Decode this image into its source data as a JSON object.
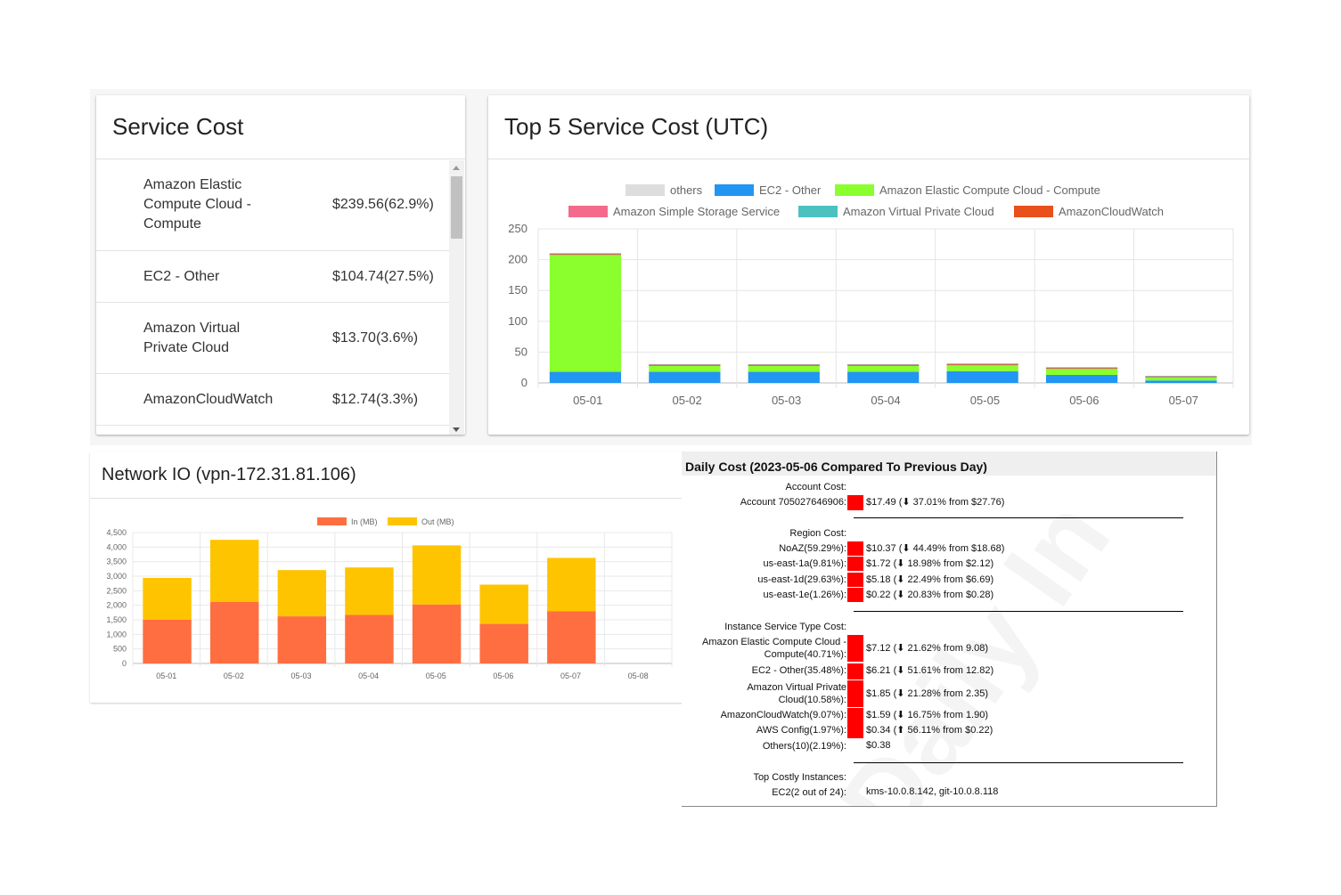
{
  "service_cost": {
    "title": "Service Cost",
    "items": [
      {
        "name": "Amazon Elastic Compute Cloud - Compute",
        "value": "$239.56(62.9%)"
      },
      {
        "name": "EC2 - Other",
        "value": "$104.74(27.5%)"
      },
      {
        "name": "Amazon Virtual Private Cloud",
        "value": "$13.70(3.6%)"
      },
      {
        "name": "AmazonCloudWatch",
        "value": "$12.74(3.3%)"
      }
    ]
  },
  "top5": {
    "title": "Top 5 Service Cost (UTC)",
    "chart_data": {
      "type": "bar",
      "stacked": true,
      "categories": [
        "05-01",
        "05-02",
        "05-03",
        "05-04",
        "05-05",
        "05-06",
        "05-07"
      ],
      "ylim": [
        0,
        250
      ],
      "yticks": [
        0,
        50,
        100,
        150,
        200,
        250
      ],
      "grid": true,
      "legend": "top",
      "series": [
        {
          "name": "others",
          "color": "#dddddd",
          "values": [
            1,
            1,
            1,
            1,
            1,
            1,
            0.5
          ]
        },
        {
          "name": "EC2 - Other",
          "color": "#2196f3",
          "values": [
            18,
            18,
            18,
            18,
            19,
            13,
            4
          ]
        },
        {
          "name": "Amazon Elastic Compute Cloud - Compute",
          "color": "#8aff2d",
          "values": [
            190,
            10,
            10,
            10,
            10,
            10,
            6
          ]
        },
        {
          "name": "Amazon Simple Storage Service",
          "color": "#f46a8a",
          "values": [
            0,
            0,
            0,
            0,
            0,
            0,
            0
          ]
        },
        {
          "name": "Amazon Virtual Private Cloud",
          "color": "#4dc0c0",
          "values": [
            1,
            1,
            1,
            1,
            1,
            1,
            0.5
          ]
        },
        {
          "name": "AmazonCloudWatch",
          "color": "#e8501c",
          "values": [
            0.5,
            0.5,
            0.5,
            0.5,
            0.5,
            0.5,
            0.5
          ]
        }
      ],
      "cap_color": "#b39aa6"
    }
  },
  "network": {
    "title": "Network IO (vpn-172.31.81.106)",
    "chart_data": {
      "type": "bar",
      "stacked": true,
      "categories": [
        "05-01",
        "05-02",
        "05-03",
        "05-04",
        "05-05",
        "05-06",
        "05-07",
        "05-08"
      ],
      "ylim": [
        0,
        4500
      ],
      "yticks": [
        "0",
        "500",
        "1,000",
        "1,500",
        "2,000",
        "2,500",
        "3,000",
        "3,500",
        "4,000",
        "4,500"
      ],
      "legend": "top",
      "series": [
        {
          "name": "In (MB)",
          "color": "#ff6e40",
          "values": [
            1500,
            2120,
            1620,
            1670,
            2030,
            1360,
            1800,
            0
          ]
        },
        {
          "name": "Out (MB)",
          "color": "#ffc400",
          "values": [
            1440,
            2130,
            1590,
            1630,
            2030,
            1350,
            1830,
            0
          ]
        }
      ]
    }
  },
  "daily": {
    "title": "Daily Cost (2023-05-06 Compared To Previous Day)",
    "sections": [
      {
        "header": "Account Cost:",
        "rows": [
          {
            "label": "Account 705027646906:",
            "value": "$17.49 (⬇ 37.01% from $27.76)"
          }
        ]
      },
      {
        "header": "Region Cost:",
        "rows": [
          {
            "label": "NoAZ(59.29%):",
            "value": "$10.37 (⬇ 44.49% from $18.68)"
          },
          {
            "label": "us-east-1a(9.81%):",
            "value": "$1.72 (⬇ 18.98% from $2.12)"
          },
          {
            "label": "us-east-1d(29.63%):",
            "value": "$5.18 (⬇ 22.49% from $6.69)"
          },
          {
            "label": "us-east-1e(1.26%):",
            "value": "$0.22 (⬇ 20.83% from $0.28)"
          }
        ]
      },
      {
        "header": "Instance Service Type Cost:",
        "rows": [
          {
            "label": "Amazon Elastic Compute Cloud - Compute(40.71%):",
            "value": "$7.12 (⬇ 21.62% from 9.08)"
          },
          {
            "label": "EC2 - Other(35.48%):",
            "value": "$6.21 (⬇ 51.61% from 12.82)"
          },
          {
            "label": "Amazon Virtual Private Cloud(10.58%):",
            "value": "$1.85 (⬇ 21.28% from 2.35)"
          },
          {
            "label": "AmazonCloudWatch(9.07%):",
            "value": "$1.59 (⬇ 16.75% from 1.90)"
          },
          {
            "label": "AWS Config(1.97%):",
            "value": "$0.34 (⬆ 56.11% from $0.22)"
          },
          {
            "label": "Others(10)(2.19%):",
            "value": "$0.38"
          }
        ]
      },
      {
        "header": "Top Costly Instances:",
        "rows": [
          {
            "label": "EC2(2 out of 24):",
            "value": "kms-10.0.8.142, git-10.0.8.118"
          }
        ]
      }
    ],
    "watermark": "Daily In"
  }
}
